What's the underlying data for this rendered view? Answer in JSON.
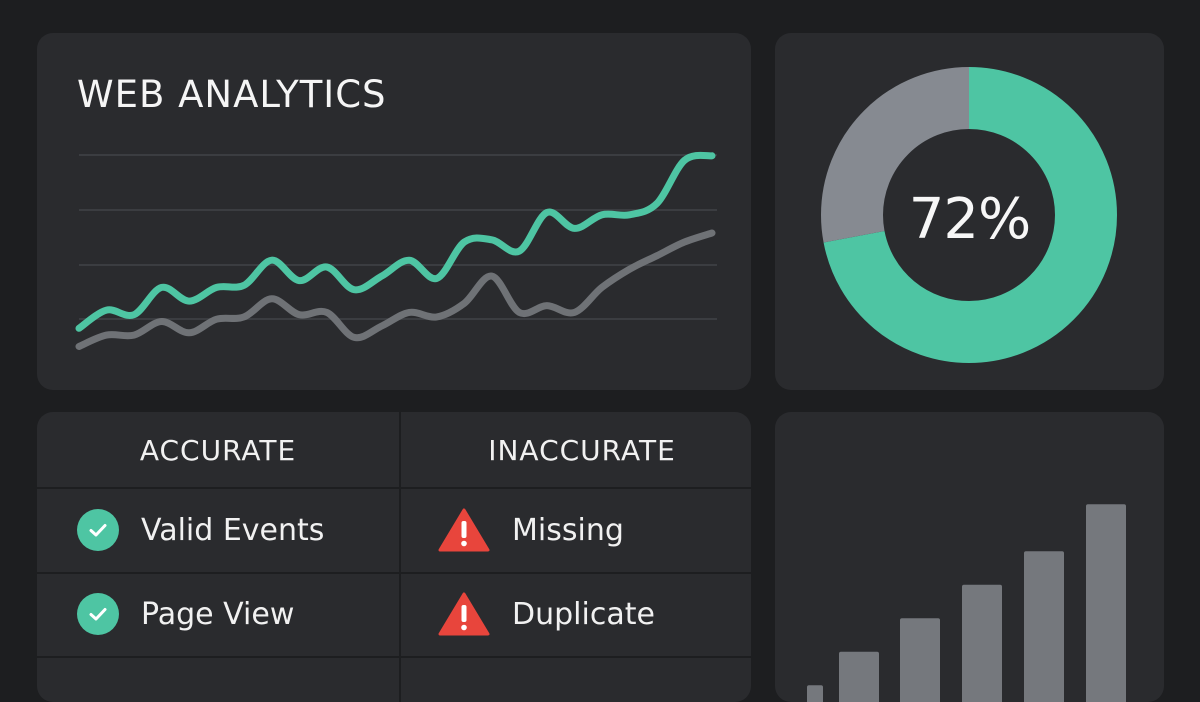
{
  "header": {
    "title": "WEB ANALYTICS"
  },
  "colors": {
    "accent": "#4ec5a3",
    "secondary": "#6f7276",
    "warning": "#e8453c",
    "card": "#2a2b2e",
    "background": "#1d1e20"
  },
  "chart_data": [
    {
      "type": "line",
      "title": "WEB ANALYTICS",
      "grid": true,
      "series": [
        {
          "values": [
            10,
            18,
            16,
            28,
            22,
            28,
            29,
            40,
            31,
            37,
            27,
            33,
            40,
            32,
            48,
            49,
            44,
            61,
            54,
            60,
            60,
            65,
            84,
            86
          ]
        },
        {
          "values": [
            2,
            7,
            7,
            13,
            8,
            14,
            15,
            23,
            16,
            17,
            6,
            11,
            17,
            15,
            21,
            33,
            17,
            20,
            17,
            28,
            36,
            42,
            48,
            52
          ]
        }
      ],
      "ylim": [
        0,
        100
      ]
    },
    {
      "type": "pie",
      "donut": true,
      "values": [
        72,
        28
      ],
      "center_label": "72%",
      "colors": [
        "#4ec5a3",
        "#868a91"
      ]
    },
    {
      "type": "bar",
      "values": [
        8,
        18,
        28,
        38,
        48,
        62
      ]
    }
  ],
  "table": {
    "headers": [
      "ACCURATE",
      "INACCURATE"
    ],
    "accurate": [
      {
        "label": "Valid Events",
        "icon": "check-circle-icon"
      },
      {
        "label": "Page View",
        "icon": "check-circle-icon"
      }
    ],
    "inaccurate": [
      {
        "label": "Missing",
        "icon": "warning-triangle-icon"
      },
      {
        "label": "Duplicate",
        "icon": "warning-triangle-icon"
      }
    ]
  }
}
